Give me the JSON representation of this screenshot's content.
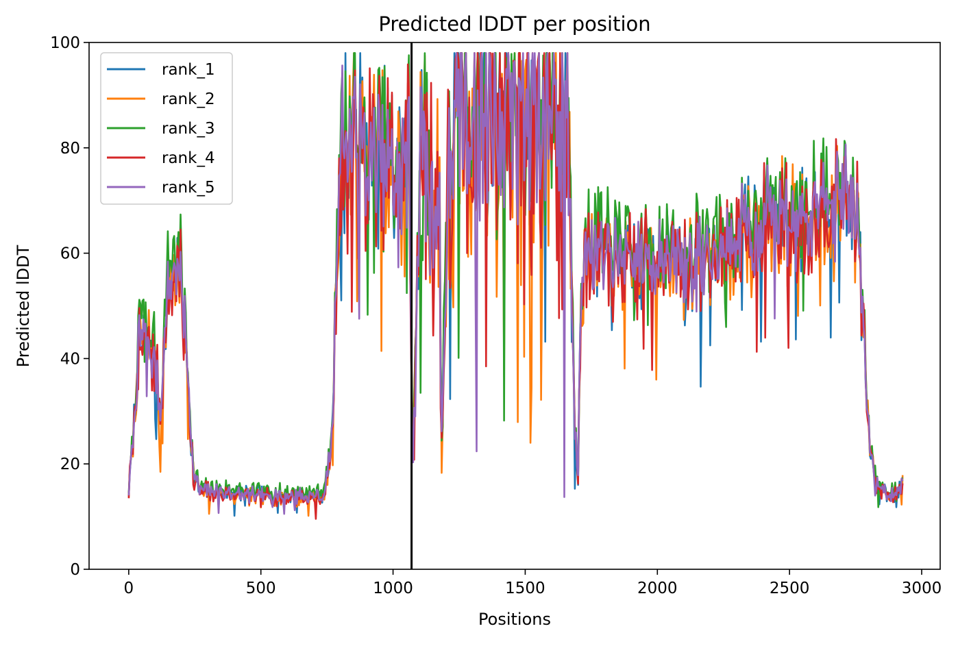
{
  "chart_data": {
    "type": "line",
    "title": "Predicted lDDT per position",
    "xlabel": "Positions",
    "ylabel": "Predicted lDDT",
    "xlim": [
      -150,
      3070
    ],
    "ylim": [
      0,
      100
    ],
    "xticks": [
      0,
      500,
      1000,
      1500,
      2000,
      2500,
      3000
    ],
    "yticks": [
      0,
      20,
      40,
      60,
      80,
      100
    ],
    "grid": false,
    "legend_position": "top-left",
    "chain_break_x": 1070,
    "series": [
      {
        "name": "rank_1",
        "color": "#1f77b4",
        "seed": 11,
        "noise": 1.0,
        "bias": 0.0
      },
      {
        "name": "rank_2",
        "color": "#ff7f0e",
        "seed": 23,
        "noise": 1.1,
        "bias": -0.6
      },
      {
        "name": "rank_3",
        "color": "#2ca02c",
        "seed": 37,
        "noise": 1.0,
        "bias": 2.6
      },
      {
        "name": "rank_4",
        "color": "#d62728",
        "seed": 41,
        "noise": 1.1,
        "bias": -1.2
      },
      {
        "name": "rank_5",
        "color": "#9467bd",
        "seed": 53,
        "noise": 0.9,
        "bias": 0.0
      }
    ],
    "profile": [
      [
        0,
        15
      ],
      [
        20,
        28
      ],
      [
        40,
        45
      ],
      [
        70,
        44
      ],
      [
        100,
        40
      ],
      [
        120,
        30
      ],
      [
        150,
        55
      ],
      [
        180,
        58
      ],
      [
        200,
        55
      ],
      [
        220,
        40
      ],
      [
        245,
        18
      ],
      [
        270,
        15
      ],
      [
        500,
        14
      ],
      [
        740,
        14
      ],
      [
        770,
        25
      ],
      [
        790,
        70
      ],
      [
        810,
        80
      ],
      [
        850,
        82
      ],
      [
        900,
        78
      ],
      [
        950,
        77
      ],
      [
        1000,
        75
      ],
      [
        1060,
        80
      ],
      [
        1075,
        20
      ],
      [
        1090,
        55
      ],
      [
        1110,
        80
      ],
      [
        1140,
        75
      ],
      [
        1175,
        68
      ],
      [
        1185,
        22
      ],
      [
        1200,
        65
      ],
      [
        1240,
        85
      ],
      [
        1300,
        88
      ],
      [
        1400,
        88
      ],
      [
        1500,
        87
      ],
      [
        1600,
        88
      ],
      [
        1665,
        86
      ],
      [
        1685,
        30
      ],
      [
        1700,
        18
      ],
      [
        1710,
        55
      ],
      [
        1750,
        62
      ],
      [
        1800,
        60
      ],
      [
        1900,
        58
      ],
      [
        2000,
        60
      ],
      [
        2100,
        58
      ],
      [
        2200,
        60
      ],
      [
        2300,
        62
      ],
      [
        2400,
        68
      ],
      [
        2500,
        66
      ],
      [
        2600,
        70
      ],
      [
        2700,
        72
      ],
      [
        2760,
        66
      ],
      [
        2780,
        45
      ],
      [
        2800,
        25
      ],
      [
        2830,
        16
      ],
      [
        2880,
        14
      ],
      [
        2930,
        16
      ]
    ]
  }
}
